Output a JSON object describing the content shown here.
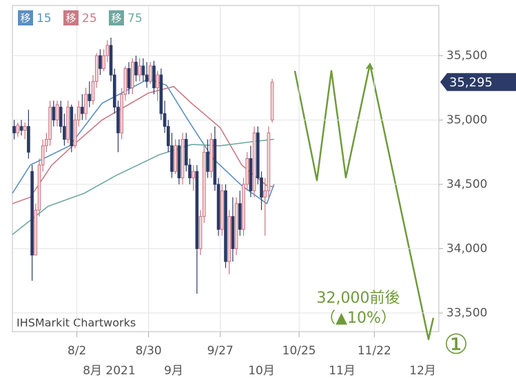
{
  "chart_data": {
    "type": "candlestick",
    "legend_prefix": "移",
    "watermark": "IHSMarkit Chartworks",
    "ylim": [
      33355,
      35890
    ],
    "yticks": [
      {
        "value": 33500,
        "label": "33,500"
      },
      {
        "value": 34000,
        "label": "34,000"
      },
      {
        "value": 34500,
        "label": "34,500"
      },
      {
        "value": 35000,
        "label": "35,000"
      },
      {
        "value": 35500,
        "label": "35,500"
      }
    ],
    "xlim": [
      0,
      119
    ],
    "xticks": [
      {
        "value": 18,
        "label": "8/2"
      },
      {
        "value": 38,
        "label": "8/30"
      },
      {
        "value": 58,
        "label": "9/27"
      },
      {
        "value": 80,
        "label": "10/25"
      },
      {
        "value": 101,
        "label": "11/22"
      }
    ],
    "month_labels": [
      {
        "value": 27,
        "label": "8月 2021"
      },
      {
        "value": 45,
        "label": "9月"
      },
      {
        "value": 69.5,
        "label": "10月"
      },
      {
        "value": 92,
        "label": "11月"
      },
      {
        "value": 114.5,
        "label": "12月"
      }
    ],
    "up_color": "#c9727d",
    "down_color": "#2b3a67",
    "last_price": {
      "value": 35295,
      "label": "35,295"
    },
    "annotation": {
      "text": "32,000前後",
      "subtext": "（▲10%）",
      "marker": "①",
      "color": "#6f9a3c"
    },
    "ohlc": [
      [
        34950,
        35000,
        34850,
        34900
      ],
      [
        34900,
        34980,
        34870,
        34960
      ],
      [
        34950,
        35000,
        34880,
        34920
      ],
      [
        34920,
        34980,
        34850,
        34950
      ],
      [
        34950,
        35080,
        34700,
        34750
      ],
      [
        34600,
        34650,
        33750,
        33950
      ],
      [
        33950,
        34350,
        33950,
        34300
      ],
      [
        34300,
        34700,
        34250,
        34650
      ],
      [
        34650,
        34850,
        34600,
        34800
      ],
      [
        34800,
        34900,
        34750,
        34850
      ],
      [
        34850,
        35150,
        34800,
        35100
      ],
      [
        35100,
        35150,
        34950,
        35000
      ],
      [
        35000,
        35150,
        34950,
        35120
      ],
      [
        35100,
        35150,
        34900,
        34950
      ],
      [
        34950,
        35050,
        34800,
        34850
      ],
      [
        34850,
        35150,
        34820,
        35100
      ],
      [
        35100,
        35120,
        34750,
        34800
      ],
      [
        34800,
        35050,
        34780,
        35000
      ],
      [
        35000,
        35150,
        34950,
        35100
      ],
      [
        35100,
        35200,
        35000,
        35050
      ],
      [
        35050,
        35250,
        35000,
        35200
      ],
      [
        35200,
        35300,
        35100,
        35150
      ],
      [
        35150,
        35350,
        35120,
        35300
      ],
      [
        35300,
        35520,
        35250,
        35500
      ],
      [
        35500,
        35550,
        35350,
        35400
      ],
      [
        35400,
        35550,
        35380,
        35500
      ],
      [
        35500,
        35620,
        35450,
        35580
      ],
      [
        35580,
        35640,
        35300,
        35350
      ],
      [
        35350,
        35400,
        35050,
        35100
      ],
      [
        35100,
        35150,
        34750,
        34900
      ],
      [
        34900,
        35250,
        34850,
        35200
      ],
      [
        35200,
        35420,
        35150,
        35400
      ],
      [
        35400,
        35450,
        35200,
        35250
      ],
      [
        35250,
        35480,
        35200,
        35450
      ],
      [
        35450,
        35500,
        35300,
        35350
      ],
      [
        35350,
        35480,
        35300,
        35420
      ],
      [
        35420,
        35480,
        35300,
        35350
      ],
      [
        35350,
        35450,
        35250,
        35300
      ],
      [
        35300,
        35450,
        35280,
        35420
      ],
      [
        35420,
        35460,
        35200,
        35250
      ],
      [
        35250,
        35380,
        35150,
        35350
      ],
      [
        35350,
        35400,
        35000,
        35050
      ],
      [
        35050,
        35150,
        34900,
        34950
      ],
      [
        34950,
        35000,
        34750,
        34800
      ],
      [
        34800,
        34900,
        34550,
        34600
      ],
      [
        34600,
        34850,
        34580,
        34800
      ],
      [
        34800,
        34850,
        34500,
        34550
      ],
      [
        34550,
        34900,
        34500,
        34850
      ],
      [
        34850,
        34900,
        34600,
        34650
      ],
      [
        34650,
        34700,
        34500,
        34550
      ],
      [
        34550,
        34650,
        34450,
        34600
      ],
      [
        34600,
        34650,
        33650,
        34000
      ],
      [
        34000,
        34300,
        33950,
        34250
      ],
      [
        34250,
        34800,
        34200,
        34750
      ],
      [
        34750,
        34850,
        34550,
        34600
      ],
      [
        34600,
        34900,
        34550,
        34850
      ],
      [
        34850,
        34950,
        34450,
        34500
      ],
      [
        34500,
        34550,
        34100,
        34150
      ],
      [
        34150,
        34500,
        34100,
        34450
      ],
      [
        34450,
        34500,
        33850,
        33900
      ],
      [
        33900,
        34300,
        33800,
        34250
      ],
      [
        34250,
        34400,
        33900,
        34000
      ],
      [
        34000,
        34400,
        33950,
        34350
      ],
      [
        34350,
        34450,
        34100,
        34150
      ],
      [
        34150,
        34550,
        34100,
        34500
      ],
      [
        34500,
        34750,
        34450,
        34700
      ],
      [
        34700,
        34800,
        34400,
        34450
      ],
      [
        34450,
        34950,
        34400,
        34900
      ],
      [
        34900,
        34950,
        34500,
        34550
      ],
      [
        34550,
        34600,
        34300,
        34400
      ],
      [
        34400,
        34550,
        34100,
        34450
      ],
      [
        34450,
        34950,
        34400,
        34900
      ],
      [
        35000,
        35320,
        34980,
        35295
      ]
    ],
    "series": [
      {
        "name": "15",
        "color": "#5b8fc0",
        "x": [
          0,
          5,
          16,
          25,
          38,
          43,
          49,
          56,
          64,
          71,
          73
        ],
        "values": [
          34430,
          34650,
          34800,
          35130,
          35320,
          35270,
          35000,
          34700,
          34490,
          34350,
          34500
        ]
      },
      {
        "name": "25",
        "color": "#c97a85",
        "x": [
          0,
          5,
          11,
          18,
          25,
          38,
          45,
          50,
          58,
          64,
          71,
          73
        ],
        "values": [
          34350,
          34400,
          34650,
          34830,
          35000,
          35210,
          35260,
          35130,
          34940,
          34650,
          34490,
          34480
        ]
      },
      {
        "name": "75",
        "color": "#6fa8a0",
        "x": [
          0,
          10,
          20,
          29,
          41,
          50,
          58,
          68,
          73
        ],
        "values": [
          34110,
          34330,
          34430,
          34570,
          34730,
          34810,
          34800,
          34835,
          34850
        ]
      }
    ]
  }
}
